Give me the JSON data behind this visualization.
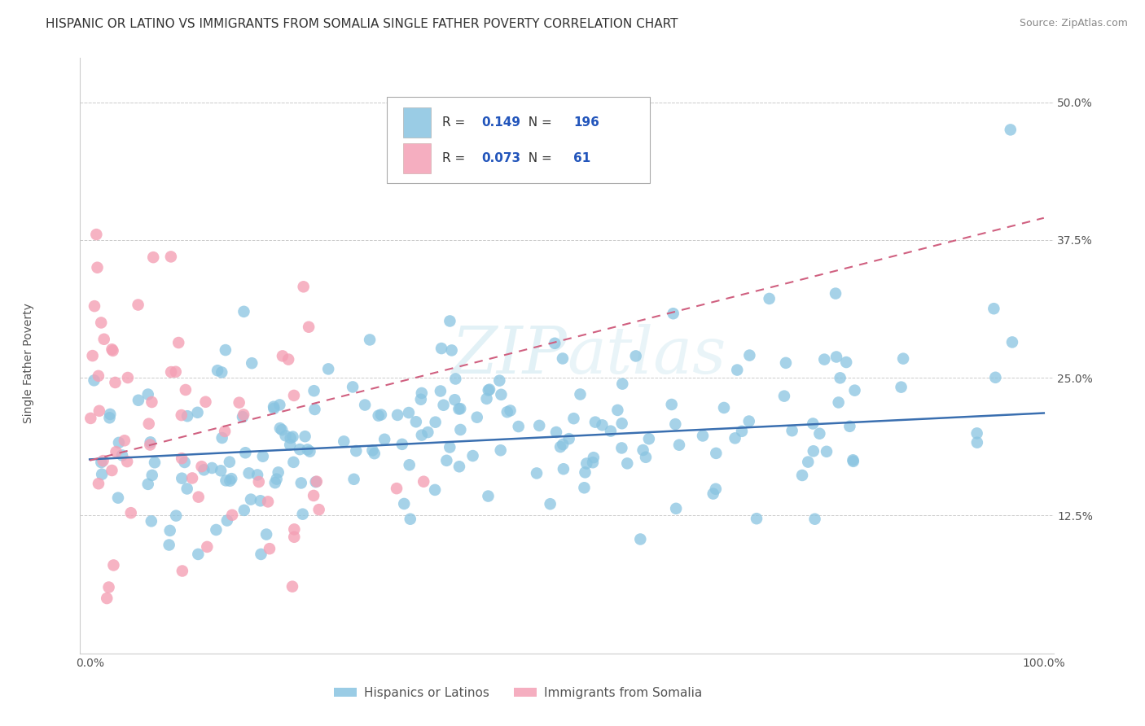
{
  "title": "HISPANIC OR LATINO VS IMMIGRANTS FROM SOMALIA SINGLE FATHER POVERTY CORRELATION CHART",
  "source": "Source: ZipAtlas.com",
  "ylabel": "Single Father Poverty",
  "legend_blue_r": "0.149",
  "legend_blue_n": "196",
  "legend_pink_r": "0.073",
  "legend_pink_n": "61",
  "legend_label_blue": "Hispanics or Latinos",
  "legend_label_pink": "Immigrants from Somalia",
  "blue_color": "#89c4e1",
  "pink_color": "#f4a0b5",
  "trendline_blue_color": "#3a6fb0",
  "trendline_pink_color": "#d06080",
  "legend_text_color": "#2255bb",
  "background_color": "#ffffff",
  "grid_color": "#cccccc",
  "watermark": "ZIPatlas",
  "title_fontsize": 11,
  "tick_fontsize": 10,
  "ylabel_fontsize": 10
}
